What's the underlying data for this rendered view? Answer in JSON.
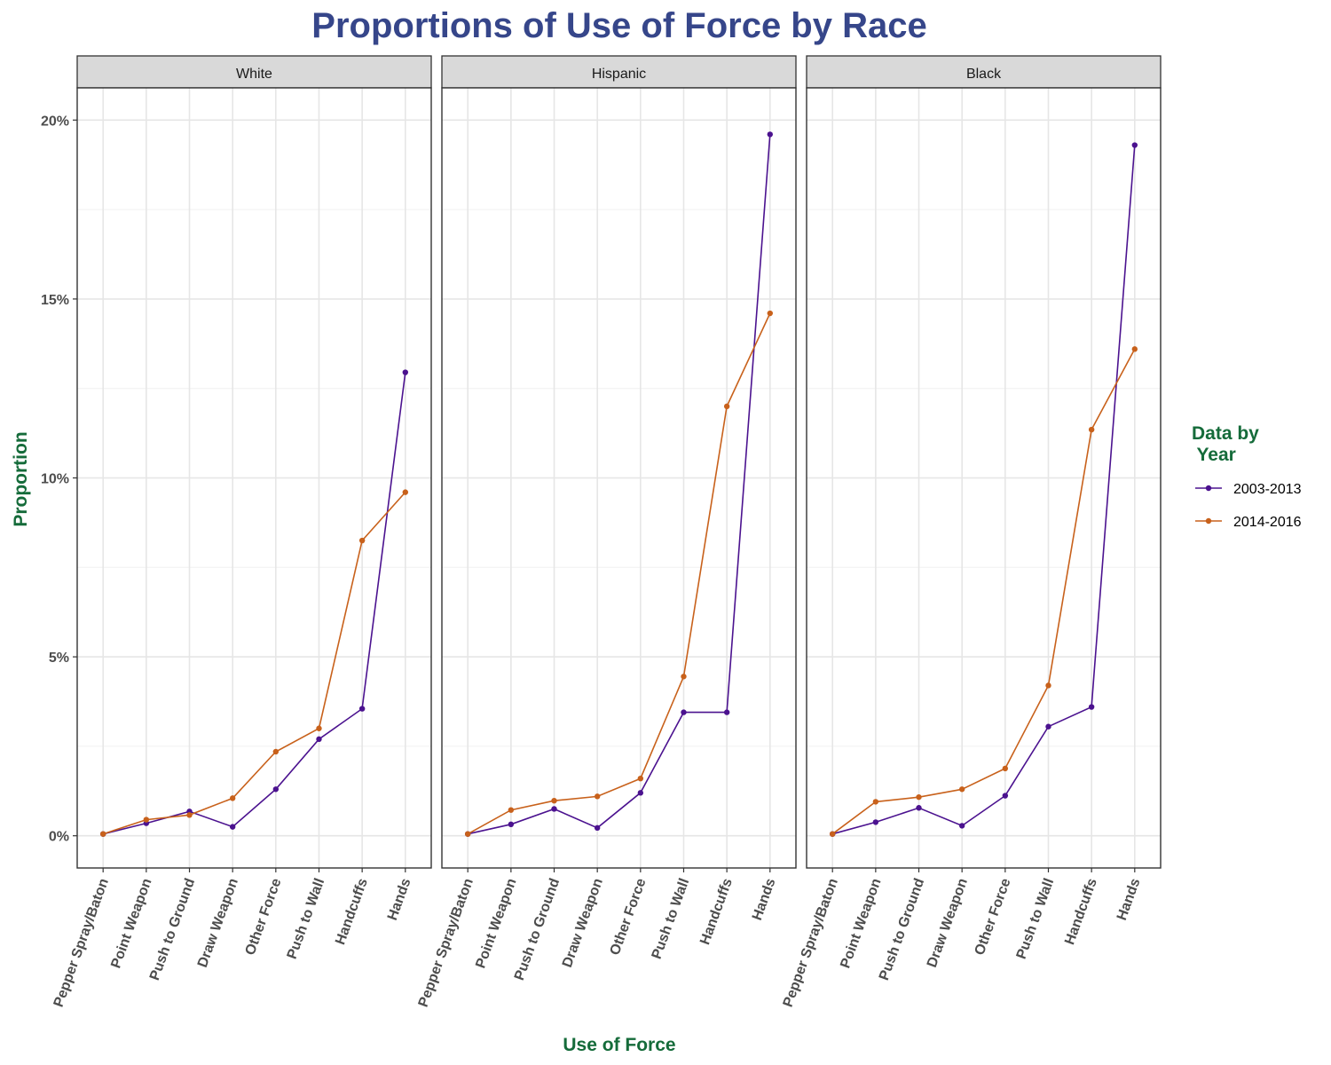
{
  "chart_data": {
    "type": "line",
    "title": "Proportions of Use of Force by Race",
    "xlabel": "Use of Force",
    "ylabel": "Proportion",
    "ylim": [
      -0.9,
      20.9
    ],
    "y_ticks": [
      0,
      5,
      10,
      15,
      20
    ],
    "y_tick_labels": [
      "0%",
      "5%",
      "10%",
      "15%",
      "20%"
    ],
    "grid": true,
    "categories": [
      "Pepper Spray/Baton",
      "Point Weapon",
      "Push to Ground",
      "Draw Weapon",
      "Other Force",
      "Push to Wall",
      "Handcuffs",
      "Hands"
    ],
    "legend": {
      "title_lines": [
        "Data by",
        " Year"
      ],
      "placement": "right"
    },
    "series_colors": {
      "2003-2013": "#4b128f",
      "2014-2016": "#c8611b"
    },
    "panels": [
      {
        "facet": "White",
        "series": [
          {
            "name": "2003-2013",
            "values": [
              0.05,
              0.35,
              0.68,
              0.25,
              1.3,
              2.7,
              3.55,
              12.95
            ]
          },
          {
            "name": "2014-2016",
            "values": [
              0.05,
              0.45,
              0.58,
              1.05,
              2.35,
              3.0,
              8.25,
              9.6
            ]
          }
        ]
      },
      {
        "facet": "Hispanic",
        "series": [
          {
            "name": "2003-2013",
            "values": [
              0.05,
              0.32,
              0.75,
              0.22,
              1.2,
              3.45,
              3.45,
              19.6
            ]
          },
          {
            "name": "2014-2016",
            "values": [
              0.05,
              0.72,
              0.98,
              1.1,
              1.6,
              4.45,
              12.0,
              14.6
            ]
          }
        ]
      },
      {
        "facet": "Black",
        "series": [
          {
            "name": "2003-2013",
            "values": [
              0.05,
              0.38,
              0.78,
              0.28,
              1.12,
              3.05,
              3.6,
              19.3
            ]
          },
          {
            "name": "2014-2016",
            "values": [
              0.05,
              0.95,
              1.08,
              1.3,
              1.88,
              4.2,
              11.35,
              13.6
            ]
          }
        ]
      }
    ]
  }
}
